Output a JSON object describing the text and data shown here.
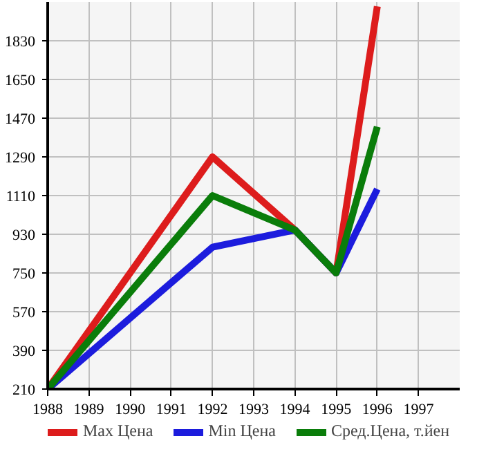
{
  "chart_data": {
    "type": "line",
    "x": [
      1988,
      1992,
      1994,
      1995,
      1996
    ],
    "series": [
      {
        "name": "Max Цена",
        "color": "#dd1c1c",
        "values": [
          210,
          1290,
          950,
          750,
          1990
        ]
      },
      {
        "name": "Min Цена",
        "color": "#1c1cdd",
        "values": [
          210,
          870,
          950,
          750,
          1140
        ]
      },
      {
        "name": "Сред.Цена, т.йен",
        "color": "#0a7d0a",
        "values": [
          210,
          1110,
          950,
          750,
          1430
        ]
      }
    ],
    "xlim": [
      1988,
      1998
    ],
    "xticks": [
      1988,
      1989,
      1990,
      1991,
      1992,
      1993,
      1994,
      1995,
      1996,
      1997
    ],
    "ylim": [
      210,
      2010
    ],
    "yticks": [
      210,
      390,
      570,
      750,
      930,
      1110,
      1290,
      1470,
      1650,
      1830
    ],
    "grid": true,
    "legend": "bottom",
    "marker": "none",
    "line_style": "solid"
  }
}
